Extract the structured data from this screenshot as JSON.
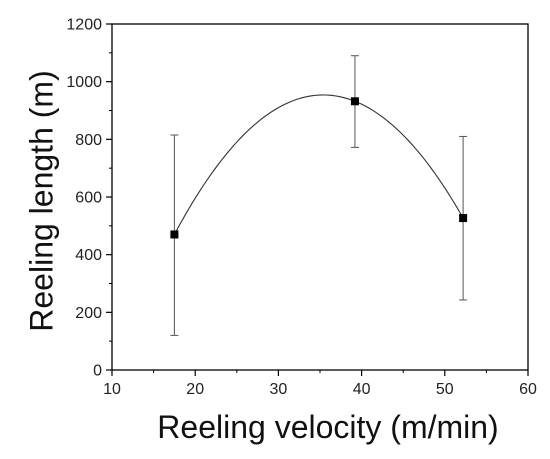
{
  "chart_data": {
    "type": "scatter",
    "title": "",
    "xlabel": "Reeling velocity (m/min)",
    "ylabel": "Reeling length (m)",
    "xlim": [
      10,
      60
    ],
    "ylim": [
      0,
      1200
    ],
    "xticks": [
      10,
      20,
      30,
      40,
      50,
      60
    ],
    "yticks": [
      0,
      200,
      400,
      600,
      800,
      1000,
      1200
    ],
    "grid": false,
    "legend": "none",
    "fit_curve": true,
    "series": [
      {
        "points": [
          {
            "x": 17.5,
            "y": 470,
            "err_low": 120,
            "err_high": 815
          },
          {
            "x": 39.2,
            "y": 932,
            "err_low": 772,
            "err_high": 1090
          },
          {
            "x": 52.2,
            "y": 527,
            "err_low": 243,
            "err_high": 810
          }
        ]
      }
    ],
    "colors": {
      "axis": "#000000",
      "marker": "#000000",
      "curve": "#333333",
      "errorbar": "#555555"
    }
  }
}
